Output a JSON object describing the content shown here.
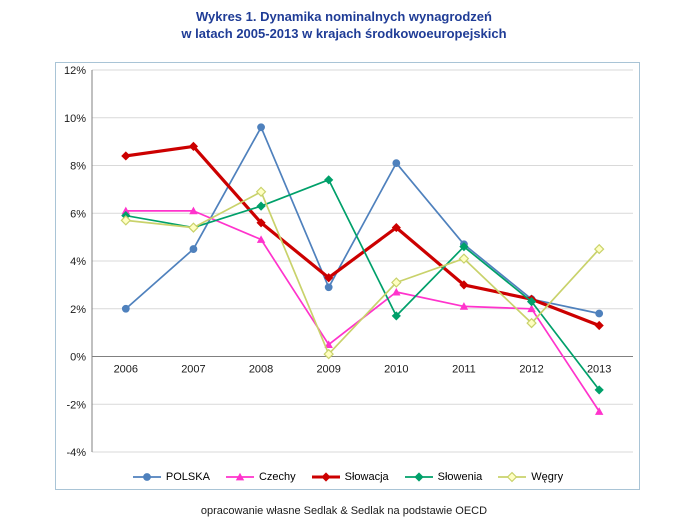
{
  "title": {
    "line1": "Wykres 1. Dynamika nominalnych wynagrodzeń",
    "line2": "w latach 2005-2013 w krajach środkowoeuropejskich",
    "color": "#1f3c96"
  },
  "caption": "opracowanie własne Sedlak & Sedlak na podstawie OECD",
  "chart_data": {
    "type": "line",
    "categories": [
      "2006",
      "2007",
      "2008",
      "2009",
      "2010",
      "2011",
      "2012",
      "2013"
    ],
    "series": [
      {
        "name": "POLSKA",
        "color": "#4f81bd",
        "marker": "circle",
        "values": [
          2.0,
          4.5,
          9.6,
          2.9,
          8.1,
          4.7,
          2.4,
          1.8
        ]
      },
      {
        "name": "Czechy",
        "color": "#ff33cc",
        "marker": "triangle",
        "values": [
          6.1,
          6.1,
          4.9,
          0.5,
          2.7,
          2.1,
          2.0,
          -2.3
        ]
      },
      {
        "name": "Słowacja",
        "color": "#cc0000",
        "marker": "diamond",
        "thick": true,
        "values": [
          8.4,
          8.8,
          5.6,
          3.3,
          5.4,
          3.0,
          2.4,
          1.3
        ]
      },
      {
        "name": "Słowenia",
        "color": "#00a06a",
        "marker": "diamond",
        "values": [
          5.9,
          5.4,
          6.3,
          7.4,
          1.7,
          4.6,
          2.3,
          -1.4
        ]
      },
      {
        "name": "Węgry",
        "color": "#c9d26b",
        "marker": "diamond-open",
        "marker_fill": "#ffffc2",
        "values": [
          5.7,
          5.4,
          6.9,
          0.1,
          3.1,
          4.1,
          1.4,
          4.5
        ]
      }
    ],
    "xlabel": "",
    "ylabel": "",
    "ylim": [
      -4,
      12
    ],
    "ytick_step": 2,
    "ytick_suffix": "%",
    "grid": true,
    "legend_position": "bottom",
    "grid_color": "#d9d9d9",
    "axis_color": "#808080",
    "frame_color": "#a9c4d6"
  }
}
